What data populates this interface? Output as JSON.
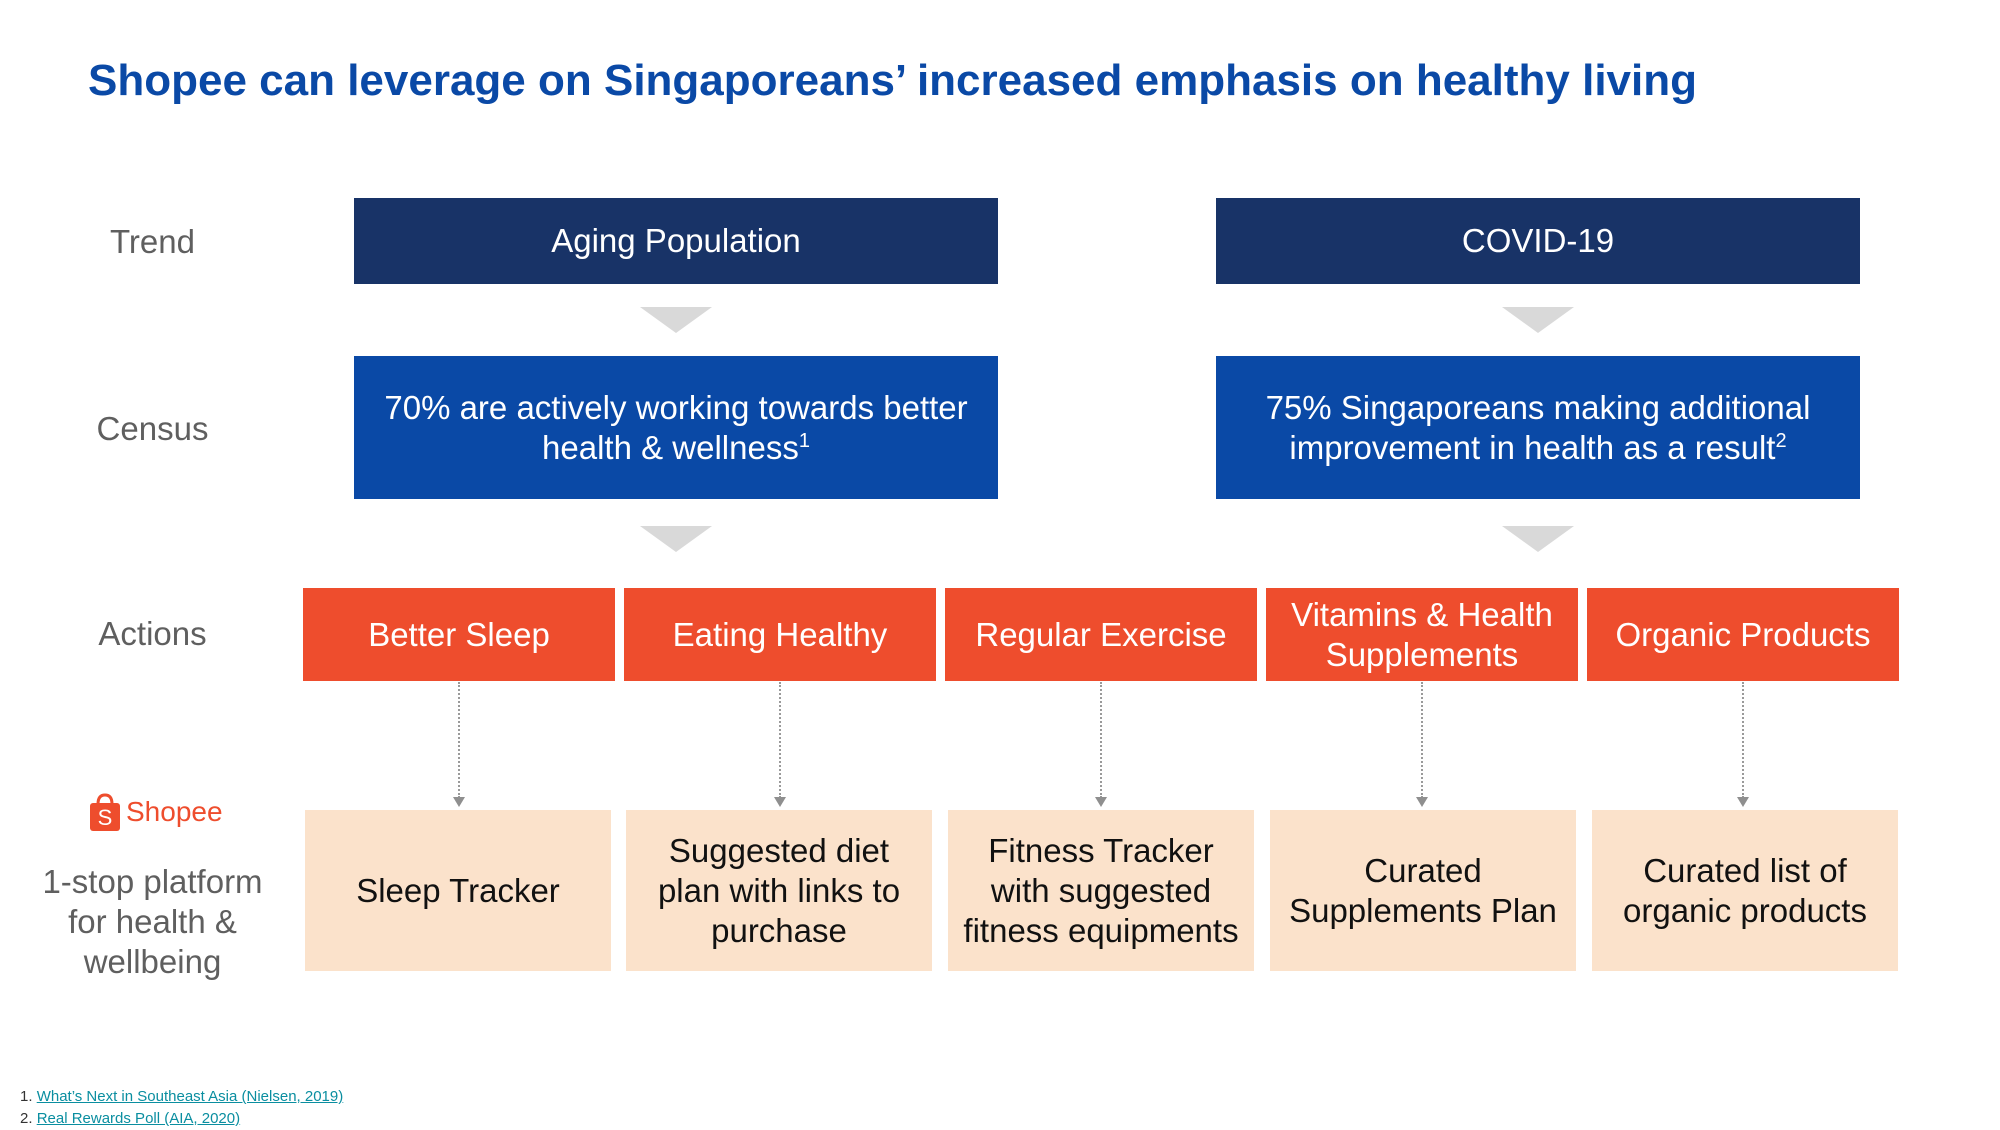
{
  "title": "Shopee can leverage on Singaporeans’ increased emphasis on healthy living",
  "row_labels": {
    "trend": "Trend",
    "census": "Census",
    "actions": "Actions",
    "platform": "1-stop platform for health & wellbeing"
  },
  "logo": {
    "text": "Shopee",
    "icon": "shopee-bag-icon"
  },
  "trends": [
    "Aging Population",
    "COVID-19"
  ],
  "census": [
    {
      "text": "70% are actively working towards better health & wellness",
      "note": "1"
    },
    {
      "text": "75% Singaporeans making additional improvement in health as a result",
      "note": "2"
    }
  ],
  "actions": [
    "Better Sleep",
    "Eating Healthy",
    "Regular Exercise",
    "Vitamins & Health Supplements",
    "Organic Products"
  ],
  "solutions": [
    "Sleep Tracker",
    "Suggested diet plan with links to purchase",
    "Fitness Tracker with suggested fitness equipments",
    "Curated Supplements Plan",
    "Curated list of organic products"
  ],
  "footnotes": [
    {
      "num": "1.",
      "text": "What’s Next in Southeast Asia (Nielsen, 2019)"
    },
    {
      "num": "2.",
      "text": "Real Rewards Poll (AIA, 2020)"
    }
  ],
  "colors": {
    "title": "#0a49a6",
    "trend": "#183367",
    "census": "#0a49a6",
    "action": "#ee4d2d",
    "solution": "#fbe2cb"
  }
}
